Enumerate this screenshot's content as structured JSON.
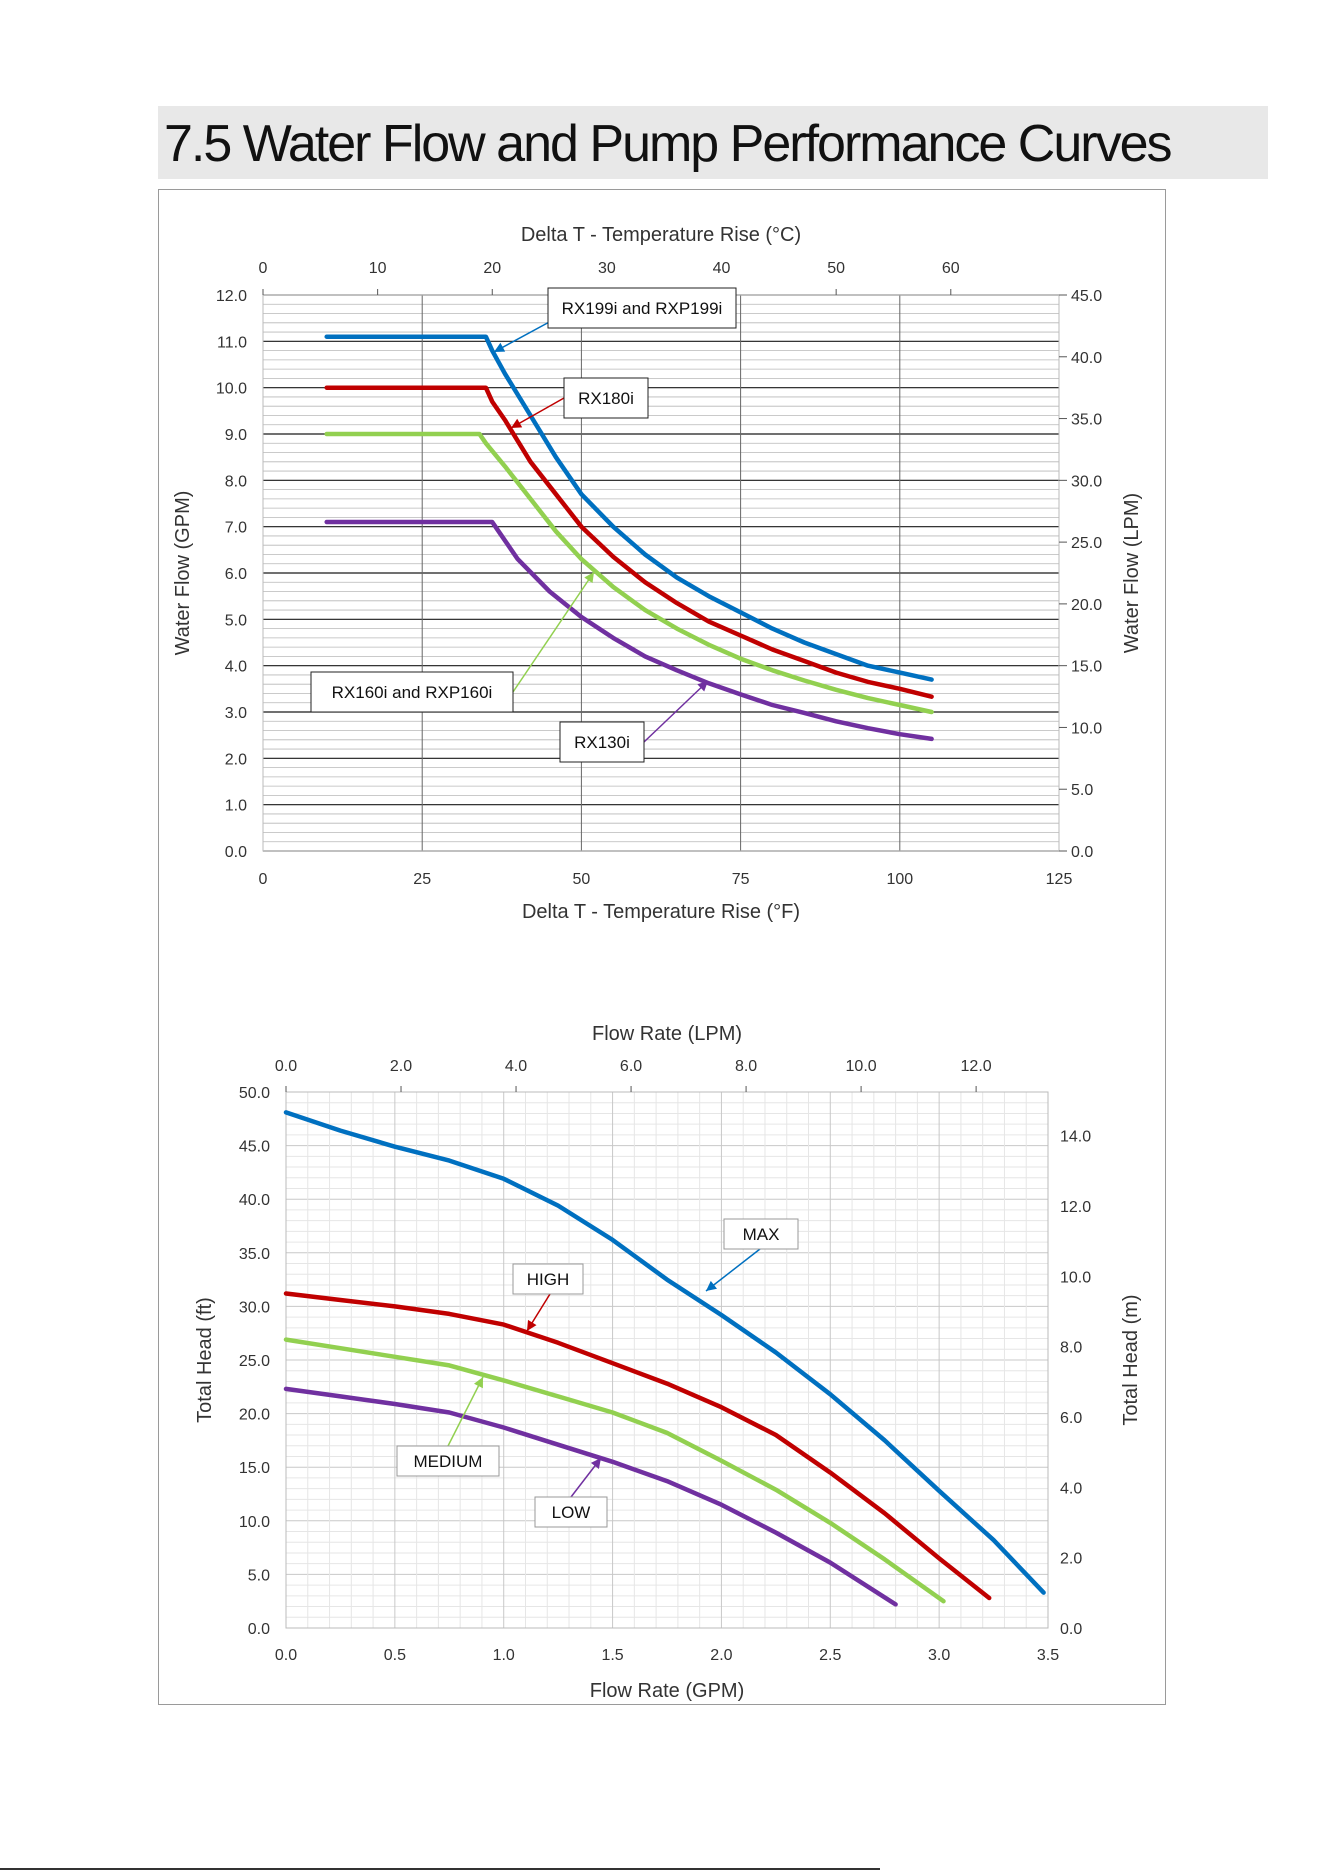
{
  "page": {
    "section_title": "7.5  Water Flow and Pump Performance Curves"
  },
  "colors": {
    "blue": "#0070c0",
    "red": "#c00000",
    "green": "#92d050",
    "purple": "#7030a0"
  },
  "chart_data": [
    {
      "type": "line",
      "title": "",
      "xlabel": "Delta T - Temperature Rise (°F)",
      "x2label": "Delta T - Temperature Rise (°C)",
      "ylabel": "Water Flow (GPM)",
      "y2label": "Water Flow (LPM)",
      "xlim": [
        0,
        125
      ],
      "ylim": [
        0,
        12
      ],
      "x2lim": [
        0,
        69.44
      ],
      "y2lim": [
        0,
        45
      ],
      "x_ticks": [
        "0",
        "25",
        "50",
        "75",
        "100",
        "125"
      ],
      "y_ticks": [
        "0.0",
        "1.0",
        "2.0",
        "3.0",
        "4.0",
        "5.0",
        "6.0",
        "7.0",
        "8.0",
        "9.0",
        "10.0",
        "11.0",
        "12.0"
      ],
      "x2_ticks": [
        "0",
        "10",
        "20",
        "30",
        "40",
        "50",
        "60"
      ],
      "y2_ticks": [
        "0.0",
        "5.0",
        "10.0",
        "15.0",
        "20.0",
        "25.0",
        "30.0",
        "35.0",
        "40.0",
        "45.0"
      ],
      "grid": true,
      "series": [
        {
          "name": "RX199i and RXP199i",
          "color": "blue",
          "x": [
            10,
            35,
            36,
            38,
            42,
            46,
            50,
            55,
            60,
            65,
            70,
            75,
            80,
            85,
            90,
            95,
            100,
            105
          ],
          "y": [
            11.1,
            11.1,
            10.8,
            10.3,
            9.4,
            8.5,
            7.7,
            7.0,
            6.4,
            5.9,
            5.5,
            5.15,
            4.8,
            4.5,
            4.25,
            4.0,
            3.85,
            3.7
          ]
        },
        {
          "name": "RX180i",
          "color": "red",
          "x": [
            10,
            35,
            36,
            38,
            42,
            46,
            50,
            55,
            60,
            65,
            70,
            75,
            80,
            85,
            90,
            95,
            100,
            105
          ],
          "y": [
            10.0,
            10.0,
            9.7,
            9.3,
            8.4,
            7.7,
            7.0,
            6.35,
            5.8,
            5.35,
            4.95,
            4.65,
            4.35,
            4.1,
            3.85,
            3.65,
            3.5,
            3.33
          ]
        },
        {
          "name": "RX160i and RXP160i",
          "color": "green",
          "x": [
            10,
            34,
            35,
            38,
            42,
            46,
            50,
            55,
            60,
            65,
            70,
            75,
            80,
            85,
            90,
            95,
            100,
            105
          ],
          "y": [
            9.0,
            9.0,
            8.8,
            8.3,
            7.6,
            6.9,
            6.3,
            5.7,
            5.2,
            4.8,
            4.45,
            4.15,
            3.9,
            3.68,
            3.48,
            3.3,
            3.15,
            3.0
          ]
        },
        {
          "name": "RX130i",
          "color": "purple",
          "x": [
            10,
            36,
            37,
            40,
            45,
            50,
            55,
            60,
            65,
            70,
            75,
            80,
            85,
            90,
            95,
            100,
            105
          ],
          "y": [
            7.1,
            7.1,
            6.9,
            6.3,
            5.6,
            5.05,
            4.6,
            4.2,
            3.9,
            3.62,
            3.38,
            3.15,
            2.98,
            2.8,
            2.65,
            2.52,
            2.42
          ]
        }
      ],
      "annotations": [
        {
          "text": "RX199i and RXP199i",
          "series": 0,
          "point": [
            36.5,
            10.9
          ]
        },
        {
          "text": "RX180i",
          "series": 1,
          "point": [
            39.5,
            9.0
          ]
        },
        {
          "text": "RX160i and RXP160i",
          "series": 2,
          "point": [
            52,
            6.0
          ]
        },
        {
          "text": "RX130i",
          "series": 3,
          "point": [
            70,
            3.6
          ]
        }
      ]
    },
    {
      "type": "line",
      "title": "",
      "xlabel": "Flow Rate (GPM)",
      "x2label": "Flow Rate (LPM)",
      "ylabel": "Total Head (ft)",
      "y2label": "Total Head (m)",
      "xlim": [
        0,
        3.5
      ],
      "ylim": [
        0,
        50
      ],
      "x2lim": [
        0,
        13.25
      ],
      "y2lim": [
        0,
        15.24
      ],
      "x_ticks": [
        "0.0",
        "0.5",
        "1.0",
        "1.5",
        "2.0",
        "2.5",
        "3.0",
        "3.5"
      ],
      "y_ticks": [
        "0.0",
        "5.0",
        "10.0",
        "15.0",
        "20.0",
        "25.0",
        "30.0",
        "35.0",
        "40.0",
        "45.0",
        "50.0"
      ],
      "x2_ticks": [
        "0.0",
        "2.0",
        "4.0",
        "6.0",
        "8.0",
        "10.0",
        "12.0"
      ],
      "y2_ticks": [
        "0.0",
        "2.0",
        "4.0",
        "6.0",
        "8.0",
        "10.0",
        "12.0",
        "14.0"
      ],
      "grid": true,
      "series": [
        {
          "name": "MAX",
          "color": "blue",
          "x": [
            0,
            0.25,
            0.5,
            0.75,
            1.0,
            1.25,
            1.5,
            1.75,
            2.0,
            2.25,
            2.5,
            2.75,
            3.0,
            3.25,
            3.48
          ],
          "y": [
            48.1,
            46.4,
            44.9,
            43.6,
            41.9,
            39.4,
            36.2,
            32.5,
            29.2,
            25.7,
            21.8,
            17.5,
            12.8,
            8.2,
            3.3
          ]
        },
        {
          "name": "HIGH",
          "color": "red",
          "x": [
            0,
            0.25,
            0.5,
            0.75,
            1.0,
            1.25,
            1.5,
            1.75,
            2.0,
            2.25,
            2.5,
            2.75,
            3.0,
            3.23
          ],
          "y": [
            31.2,
            30.6,
            30.0,
            29.3,
            28.3,
            26.6,
            24.7,
            22.8,
            20.6,
            18.0,
            14.5,
            10.7,
            6.5,
            2.8
          ]
        },
        {
          "name": "MEDIUM",
          "color": "green",
          "x": [
            0,
            0.25,
            0.5,
            0.75,
            1.0,
            1.25,
            1.5,
            1.75,
            2.0,
            2.25,
            2.5,
            2.75,
            3.02
          ],
          "y": [
            26.9,
            26.1,
            25.3,
            24.5,
            23.1,
            21.6,
            20.1,
            18.2,
            15.6,
            12.9,
            9.8,
            6.4,
            2.5
          ]
        },
        {
          "name": "LOW",
          "color": "purple",
          "x": [
            0,
            0.25,
            0.5,
            0.75,
            1.0,
            1.25,
            1.5,
            1.75,
            2.0,
            2.25,
            2.5,
            2.8
          ],
          "y": [
            22.3,
            21.6,
            20.9,
            20.1,
            18.7,
            17.1,
            15.5,
            13.7,
            11.5,
            8.9,
            6.1,
            2.2
          ]
        }
      ],
      "annotations": [
        {
          "text": "MAX",
          "series": 0,
          "point": [
            1.95,
            31.0
          ]
        },
        {
          "text": "HIGH",
          "series": 1,
          "point": [
            1.12,
            27.7
          ]
        },
        {
          "text": "MEDIUM",
          "series": 2,
          "point": [
            0.92,
            24.0
          ]
        },
        {
          "text": "LOW",
          "series": 3,
          "point": [
            1.45,
            15.8
          ]
        }
      ]
    }
  ]
}
